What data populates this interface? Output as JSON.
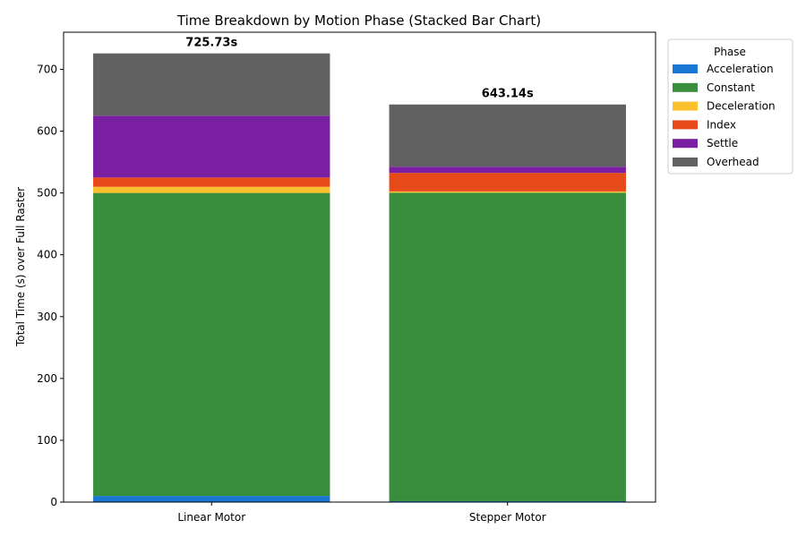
{
  "chart_data": {
    "type": "bar",
    "stacked": true,
    "title": "Time Breakdown by Motion Phase (Stacked Bar Chart)",
    "xlabel": "",
    "ylabel": "Total Time (s) over Full Raster",
    "ylim": [
      0,
      760
    ],
    "yticks": [
      0,
      100,
      200,
      300,
      400,
      500,
      600,
      700
    ],
    "categories": [
      "Linear Motor",
      "Stepper Motor"
    ],
    "totals_labels": [
      "725.73s",
      "643.14s"
    ],
    "legend": {
      "title": "Phase",
      "placement": "outside-top-right"
    },
    "grid": false,
    "series": [
      {
        "name": "Acceleration",
        "color": "#1976d2",
        "values": [
          10,
          1.5
        ]
      },
      {
        "name": "Constant",
        "color": "#388e3c",
        "values": [
          490,
          499
        ]
      },
      {
        "name": "Deceleration",
        "color": "#fbc02d",
        "values": [
          10,
          2
        ]
      },
      {
        "name": "Index",
        "color": "#e64a19",
        "values": [
          15,
          30
        ]
      },
      {
        "name": "Settle",
        "color": "#7b1fa2",
        "values": [
          100,
          10
        ]
      },
      {
        "name": "Overhead",
        "color": "#616161",
        "values": [
          100.73,
          100.64
        ]
      }
    ]
  }
}
